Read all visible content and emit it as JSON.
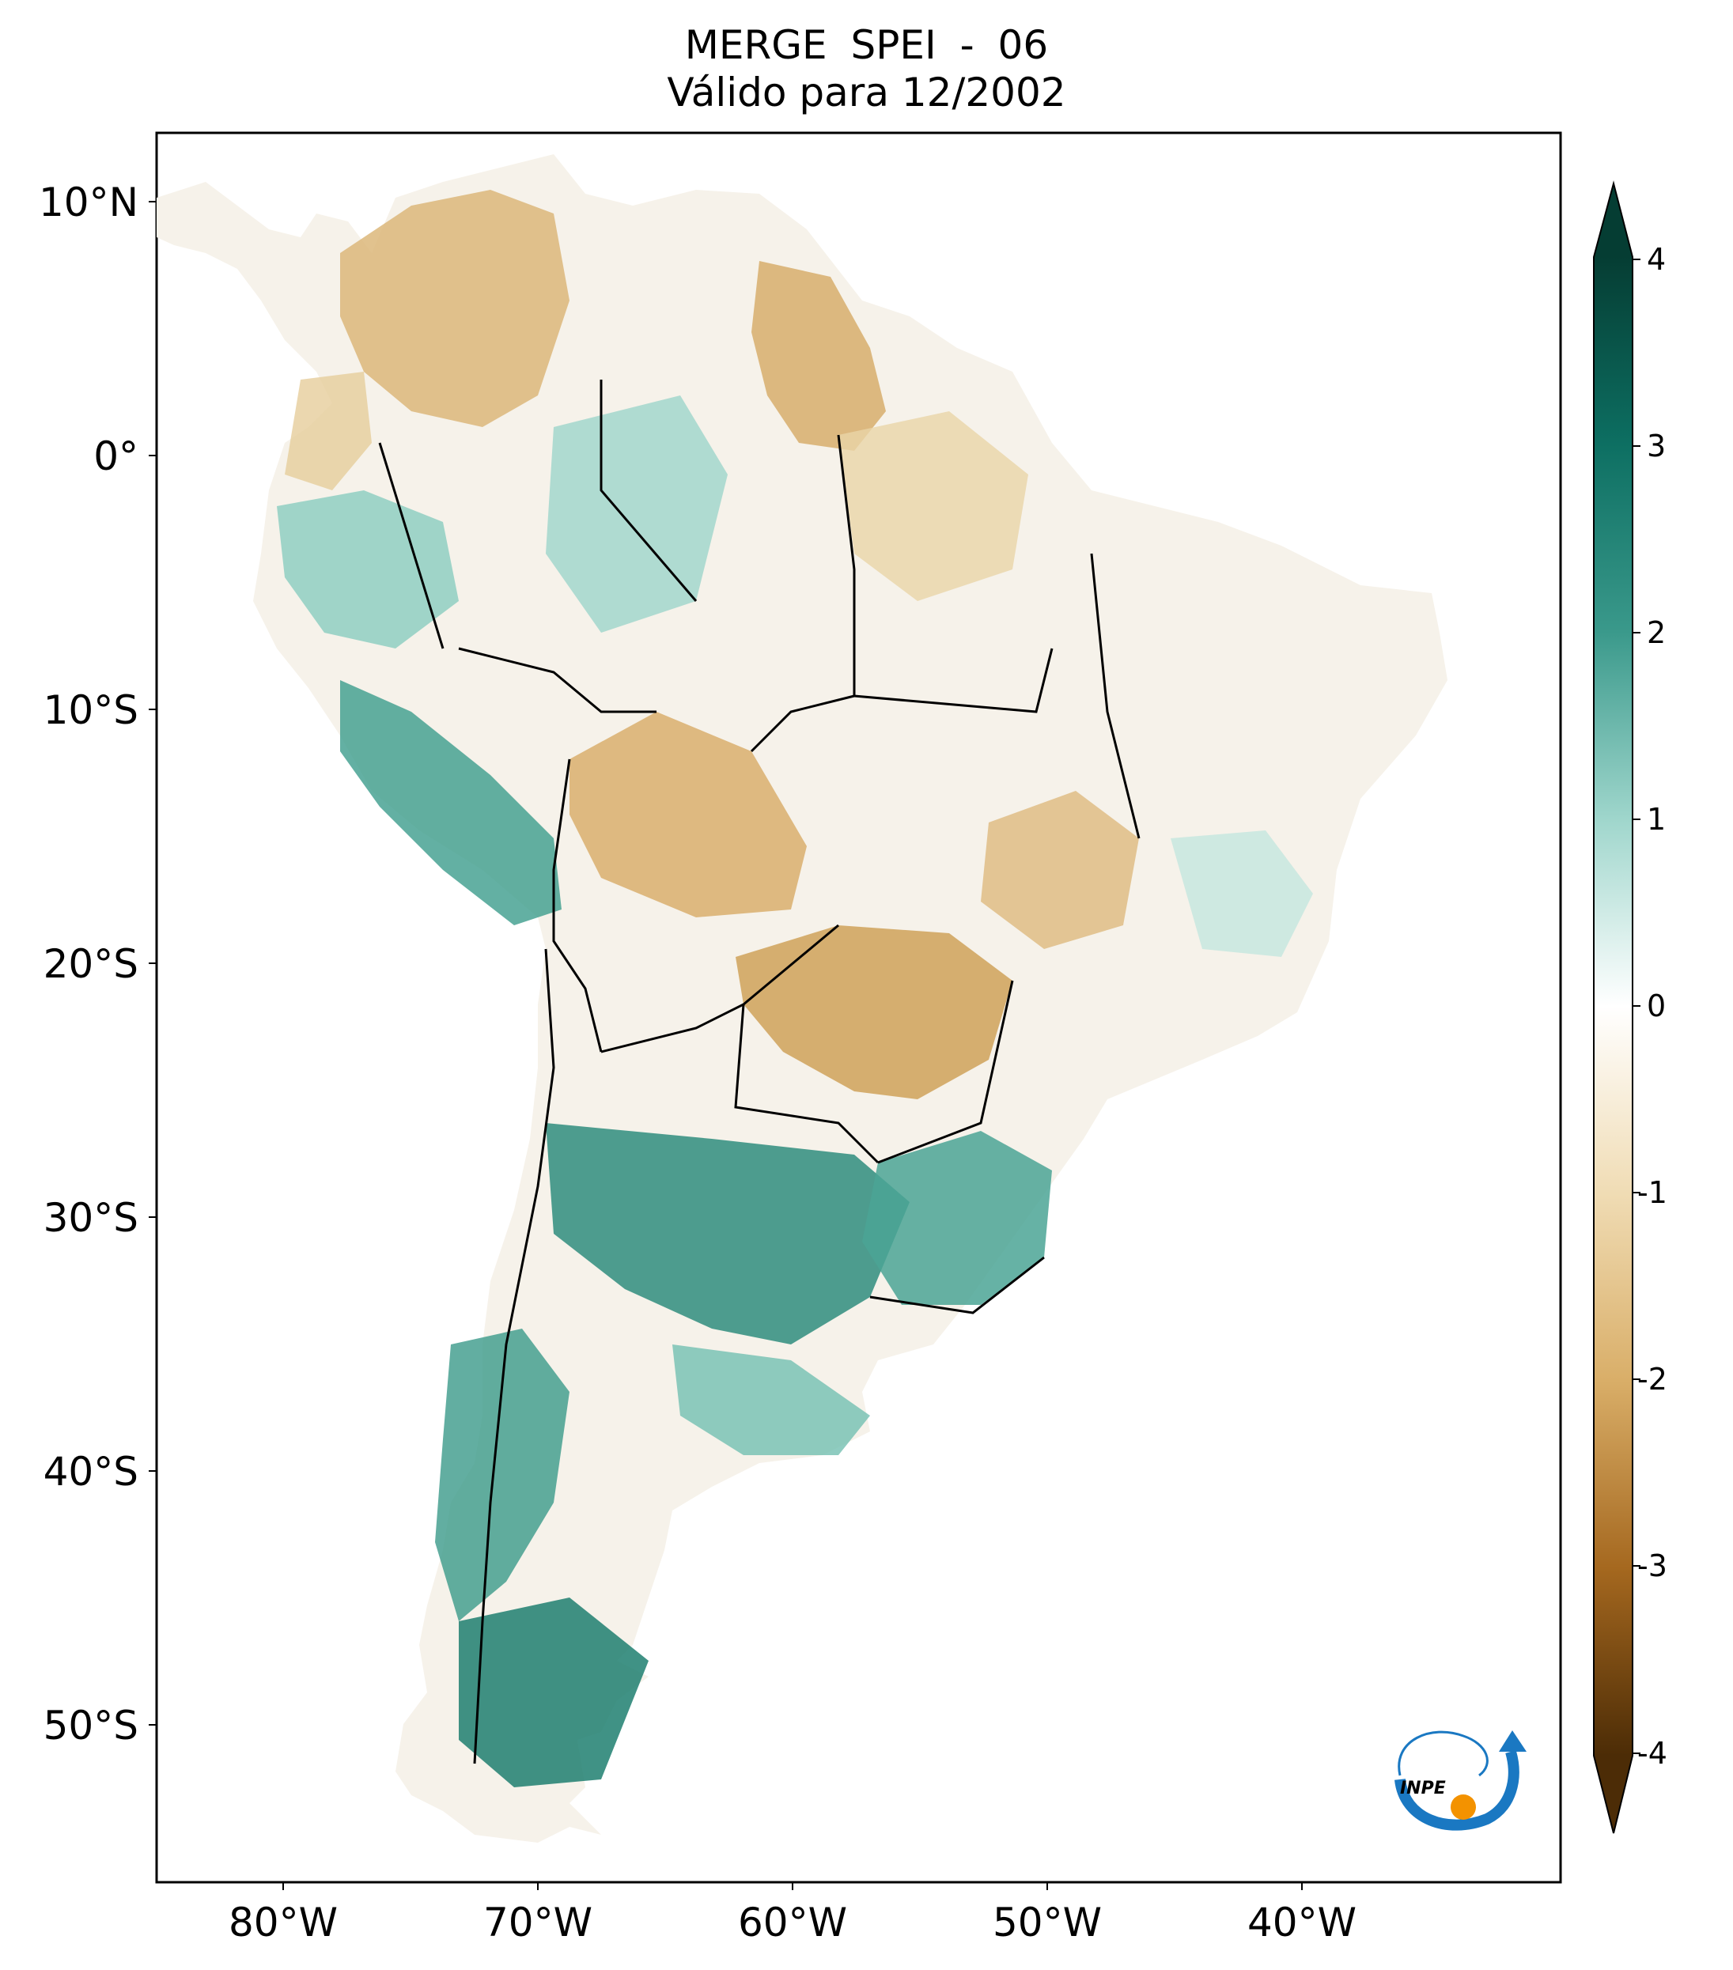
{
  "title": {
    "line1": "MERGE   SPEI - 06",
    "line2": "Válido para 12/2002"
  },
  "lat_ticks": [
    "10°N",
    "0°",
    "10°S",
    "20°S",
    "30°S",
    "40°S",
    "50°S"
  ],
  "lon_ticks": [
    "80°W",
    "70°W",
    "60°W",
    "50°W",
    "40°W"
  ],
  "colorbar": {
    "ticks": [
      "4",
      "3",
      "2",
      "1",
      "0",
      "-1",
      "-2",
      "-3",
      "-4"
    ],
    "colors": {
      "max": "#053d33",
      "high": "#0d6f62",
      "mid_high": "#65b8aa",
      "neutral": "#ffffff",
      "mid_low": "#e3c48b",
      "low": "#b2762a",
      "min": "#4c2c06"
    }
  },
  "logo": {
    "text": "INPE",
    "icon": "inpe-logo-icon"
  }
}
